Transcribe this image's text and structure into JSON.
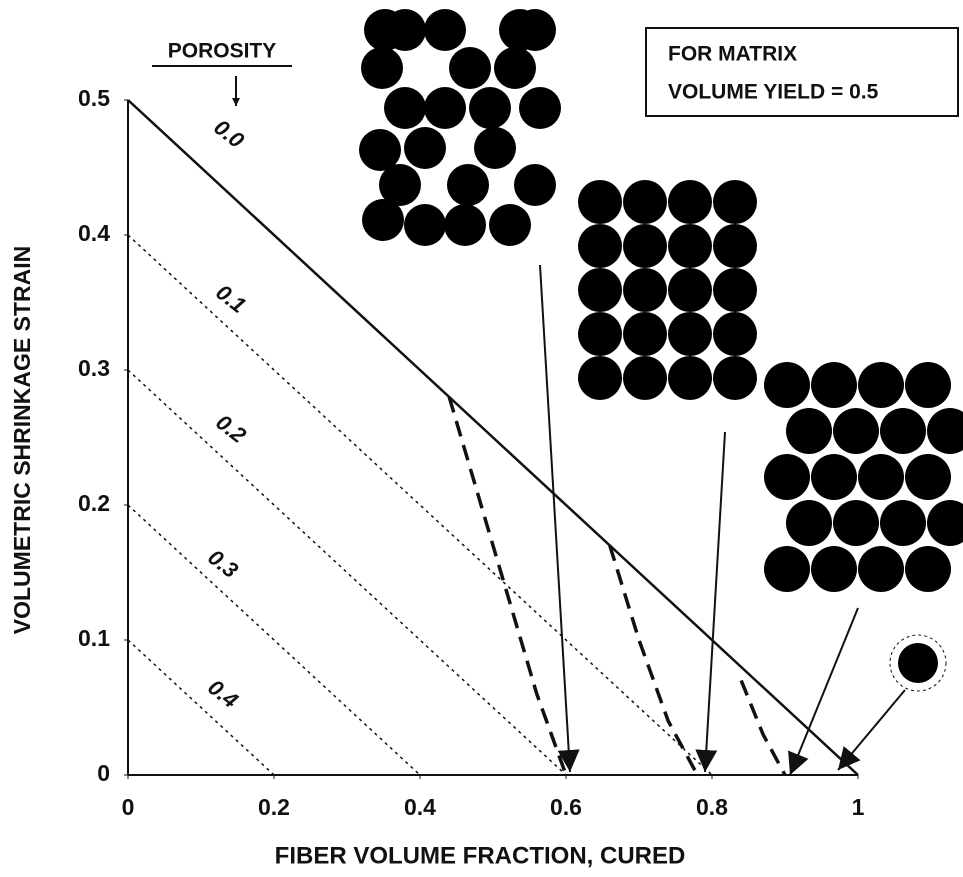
{
  "chart_data": {
    "type": "line",
    "x_label": "FIBER VOLUME FRACTION, CURED",
    "y_label": "VOLUMETRIC SHRINKAGE STRAIN",
    "annotations": [
      "POROSITY",
      "FOR MATRIX",
      "VOLUME YIELD = 0.5"
    ],
    "xlim": [
      0,
      1
    ],
    "ylim": [
      0,
      0.5
    ],
    "xticks": [
      0,
      0.2,
      0.4,
      0.6,
      0.8,
      1
    ],
    "yticks": [
      0,
      0.1,
      0.2,
      0.3,
      0.4,
      0.5
    ],
    "series": [
      {
        "name": "0.0",
        "style": "solid",
        "x": [
          0,
          1
        ],
        "values": [
          0.5,
          0
        ]
      },
      {
        "name": "0.1",
        "style": "dotted",
        "x": [
          0,
          0.8
        ],
        "values": [
          0.4,
          0
        ]
      },
      {
        "name": "0.2",
        "style": "dotted",
        "x": [
          0,
          0.6
        ],
        "values": [
          0.3,
          0
        ]
      },
      {
        "name": "0.3",
        "style": "dotted",
        "x": [
          0,
          0.4
        ],
        "values": [
          0.2,
          0
        ]
      },
      {
        "name": "0.4",
        "style": "dotted",
        "x": [
          0,
          0.2
        ],
        "values": [
          0.1,
          0
        ]
      },
      {
        "style": "dashed",
        "x": [
          0.44,
          0.5,
          0.56,
          0.6
        ],
        "values": [
          0.28,
          0.17,
          0.06,
          0
        ]
      },
      {
        "style": "dashed",
        "x": [
          0.66,
          0.7,
          0.74,
          0.78
        ],
        "values": [
          0.17,
          0.1,
          0.04,
          0
        ]
      },
      {
        "style": "dashed",
        "x": [
          0.84,
          0.87,
          0.9
        ],
        "values": [
          0.07,
          0.03,
          0
        ]
      }
    ]
  }
}
